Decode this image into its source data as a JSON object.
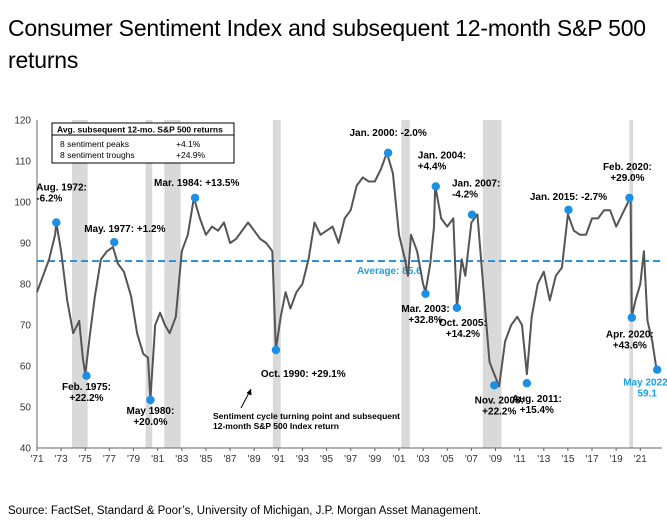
{
  "title": "Consumer Sentiment Index and subsequent 12-month S&P 500 returns",
  "source": "Source: FactSet, Standard & Poor’s, University of Michigan, J.P. Morgan Asset Management.",
  "colors": {
    "line": "#555555",
    "marker": "#1a8fe3",
    "average": "#1a8fe3",
    "recession": "#d9d9d9",
    "annotation_blue": "#1ba1e2"
  },
  "chart_data": {
    "type": "line",
    "xlim": [
      1971,
      2022.8
    ],
    "ylim": [
      40,
      120
    ],
    "yticks": [
      40,
      50,
      60,
      70,
      80,
      90,
      100,
      110,
      120
    ],
    "xticks": [
      {
        "x": 1971,
        "label": "'71"
      },
      {
        "x": 1973,
        "label": "'73"
      },
      {
        "x": 1975,
        "label": "'75"
      },
      {
        "x": 1977,
        "label": "'77"
      },
      {
        "x": 1979,
        "label": "'79"
      },
      {
        "x": 1981,
        "label": "'81"
      },
      {
        "x": 1983,
        "label": "'83"
      },
      {
        "x": 1985,
        "label": "'85"
      },
      {
        "x": 1987,
        "label": "'87"
      },
      {
        "x": 1989,
        "label": "'89"
      },
      {
        "x": 1991,
        "label": "'91"
      },
      {
        "x": 1993,
        "label": "'93"
      },
      {
        "x": 1995,
        "label": "'95"
      },
      {
        "x": 1997,
        "label": "'97"
      },
      {
        "x": 1999,
        "label": "'99"
      },
      {
        "x": 2001,
        "label": "'01"
      },
      {
        "x": 2003,
        "label": "'03"
      },
      {
        "x": 2005,
        "label": "'05"
      },
      {
        "x": 2007,
        "label": "'07"
      },
      {
        "x": 2009,
        "label": "'09"
      },
      {
        "x": 2011,
        "label": "'11"
      },
      {
        "x": 2013,
        "label": "'13"
      },
      {
        "x": 2015,
        "label": "'15"
      },
      {
        "x": 2017,
        "label": "'17"
      },
      {
        "x": 2019,
        "label": "'19"
      },
      {
        "x": 2021,
        "label": "'21"
      }
    ],
    "recessions": [
      [
        1973.9,
        1975.2
      ],
      [
        1980.0,
        1980.55
      ],
      [
        1981.55,
        1982.9
      ],
      [
        1990.55,
        1991.2
      ],
      [
        2001.2,
        2001.9
      ],
      [
        2007.95,
        2009.5
      ],
      [
        2020.1,
        2020.4
      ]
    ],
    "average": {
      "value": 85.6,
      "label": "Average: 85.6"
    },
    "series": [
      {
        "x": [
          1971.0,
          1971.5,
          1972.0,
          1972.5,
          1972.6,
          1973.0,
          1973.5,
          1974.0,
          1974.5,
          1974.8,
          1975.0,
          1975.4,
          1975.8,
          1976.3,
          1976.8,
          1977.3,
          1977.7,
          1978.2,
          1978.8,
          1979.3,
          1979.8,
          1980.2,
          1980.4,
          1980.8,
          1981.2,
          1981.6,
          1982.0,
          1982.5,
          1983.0,
          1983.5,
          1984.0,
          1984.5,
          1985.0,
          1985.5,
          1986.0,
          1986.5,
          1987.0,
          1987.5,
          1988.0,
          1988.5,
          1989.0,
          1989.5,
          1990.0,
          1990.5,
          1990.8,
          1991.2,
          1991.6,
          1992.0,
          1992.5,
          1993.0,
          1993.5,
          1994.0,
          1994.5,
          1995.0,
          1995.5,
          1996.0,
          1996.5,
          1997.0,
          1997.5,
          1998.0,
          1998.5,
          1999.0,
          1999.5,
          2000.0,
          2000.5,
          2001.0,
          2001.5,
          2001.75,
          2002.0,
          2002.5,
          2003.0,
          2003.2,
          2003.6,
          2003.9,
          2004.0,
          2004.5,
          2005.0,
          2005.5,
          2005.8,
          2006.2,
          2006.5,
          2007.0,
          2007.5,
          2008.0,
          2008.5,
          2008.9,
          2009.3,
          2009.8,
          2010.3,
          2010.8,
          2011.2,
          2011.6,
          2012.0,
          2012.5,
          2013.0,
          2013.5,
          2014.0,
          2014.5,
          2015.0,
          2015.5,
          2016.0,
          2016.5,
          2017.0,
          2017.5,
          2018.0,
          2018.5,
          2019.0,
          2019.5,
          2020.0,
          2020.2,
          2020.3,
          2020.6,
          2021.0,
          2021.3,
          2021.6,
          2022.0,
          2022.3,
          2022.5
        ],
        "values": [
          78,
          82,
          86,
          92,
          95,
          88,
          76,
          68,
          71,
          62,
          58,
          68,
          77,
          86,
          88,
          89,
          85,
          83,
          77,
          68,
          63,
          62,
          52,
          70,
          73,
          70,
          68,
          72,
          88,
          92,
          101,
          96,
          92,
          94,
          93,
          95,
          90,
          91,
          93,
          95,
          93,
          91,
          90,
          88,
          64,
          72,
          78,
          74,
          78,
          80,
          86,
          95,
          92,
          93,
          94,
          90,
          96,
          98,
          104,
          106,
          105,
          105,
          108,
          112,
          107,
          92,
          86,
          82,
          92,
          88,
          80,
          78,
          85,
          94,
          104,
          96,
          94,
          96,
          74,
          86,
          82,
          95,
          97,
          79,
          61,
          58,
          55,
          66,
          70,
          72,
          70,
          58,
          72,
          80,
          83,
          76,
          82,
          84,
          97,
          93,
          92,
          92,
          96,
          96,
          98,
          98,
          94,
          97,
          100,
          101,
          72,
          76,
          80,
          88,
          71,
          66,
          60,
          59
        ]
      }
    ],
    "peaks": [
      {
        "x": 1972.6,
        "y": 95,
        "label": [
          "Aug. 1972:",
          "-6.2%"
        ]
      },
      {
        "x": 1977.4,
        "y": 90.2,
        "label": [
          "May. 1977: +1.2%"
        ]
      },
      {
        "x": 1984.1,
        "y": 101,
        "label": [
          "Mar. 1984: +13.5%"
        ]
      },
      {
        "x": 2000.1,
        "y": 112,
        "label": [
          "Jan. 2000: -2.0%"
        ]
      },
      {
        "x": 2004.05,
        "y": 103.8,
        "label": [
          "Jan. 2004:",
          "+4.4%"
        ]
      },
      {
        "x": 2007.05,
        "y": 96.9,
        "label": [
          "Jan. 2007:",
          "-4.2%"
        ]
      },
      {
        "x": 2015.05,
        "y": 98.1,
        "label": [
          "Jan. 2015: -2.7%"
        ]
      },
      {
        "x": 2020.1,
        "y": 101,
        "label": [
          "Feb. 2020:",
          "+29.0%"
        ]
      }
    ],
    "troughs": [
      {
        "x": 1975.1,
        "y": 57.6,
        "label": [
          "Feb. 1975:",
          "+22.2%"
        ]
      },
      {
        "x": 1980.4,
        "y": 51.7,
        "label": [
          "May 1980:",
          "+20.0%"
        ]
      },
      {
        "x": 1990.8,
        "y": 63.9,
        "label": [
          "Oct. 1990: +29.1%"
        ]
      },
      {
        "x": 2003.2,
        "y": 77.6,
        "label": [
          "Mar. 2003:",
          "+32.8%"
        ]
      },
      {
        "x": 2005.8,
        "y": 74.2,
        "label": [
          "Oct. 2005:",
          "+14.2%"
        ]
      },
      {
        "x": 2008.9,
        "y": 55.3,
        "label": [
          "Nov. 2008:",
          "+22.2%"
        ]
      },
      {
        "x": 2011.6,
        "y": 55.8,
        "label": [
          "Aug. 2011:",
          "+15.4%"
        ]
      },
      {
        "x": 2020.3,
        "y": 71.8,
        "label": [
          "Apr. 2020:",
          "+43.6%"
        ]
      },
      {
        "x": 2022.4,
        "y": 59.1,
        "label": [
          "May 2022:",
          "59.1"
        ]
      }
    ],
    "table": {
      "header": "Avg. subsequent 12-mo. S&P 500 returns",
      "rows": [
        {
          "label": "8 sentiment peaks",
          "value": "+4.1%"
        },
        {
          "label": "8 sentiment troughs",
          "value": "+24.9%"
        }
      ]
    },
    "note": [
      "Sentiment cycle turning point and subsequent",
      "12-month S&P 500 Index return"
    ]
  }
}
